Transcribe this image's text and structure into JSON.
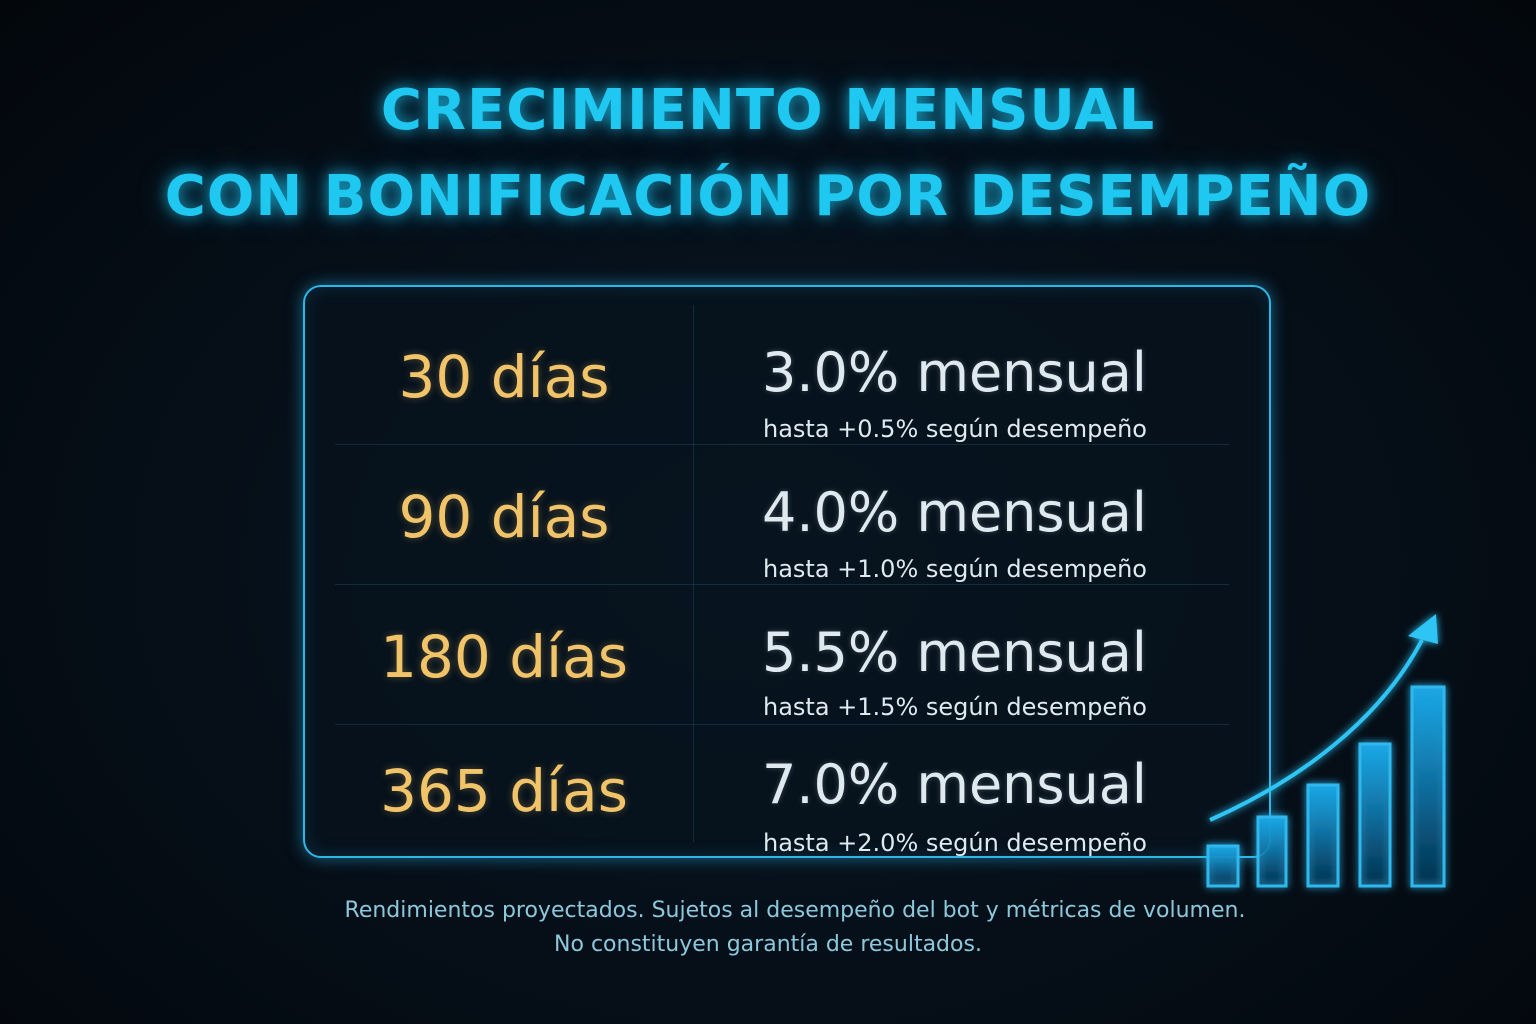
{
  "title": {
    "line1": "CRECIMIENTO MENSUAL",
    "line2": "CON BONIFICACIÓN POR DESEMPEÑO"
  },
  "plans": [
    {
      "days": "30 días",
      "rate": "3.0% mensual",
      "bonus": "hasta +0.5% según desempeño"
    },
    {
      "days": "90 días",
      "rate": "4.0% mensual",
      "bonus": "hasta +1.0% según desempeño"
    },
    {
      "days": "180 días",
      "rate": "5.5% mensual",
      "bonus": "hasta +1.5% según desempeño"
    },
    {
      "days": "365 días",
      "rate": "7.0% mensual",
      "bonus": "hasta +2.0% según desempeño"
    }
  ],
  "disclaimer": {
    "line1": "Rendimientos proyectados. Sujetos al desempeño del bot y métricas de volumen.",
    "line2": "No constituyen garantía de resultados."
  },
  "icons": {
    "growth": "growth-chart-arrow-icon"
  },
  "colors": {
    "accent": "#1ec8f0",
    "days": "#f2c46a",
    "text": "#dfe9f0",
    "disclaimer": "#8cc8dc"
  }
}
